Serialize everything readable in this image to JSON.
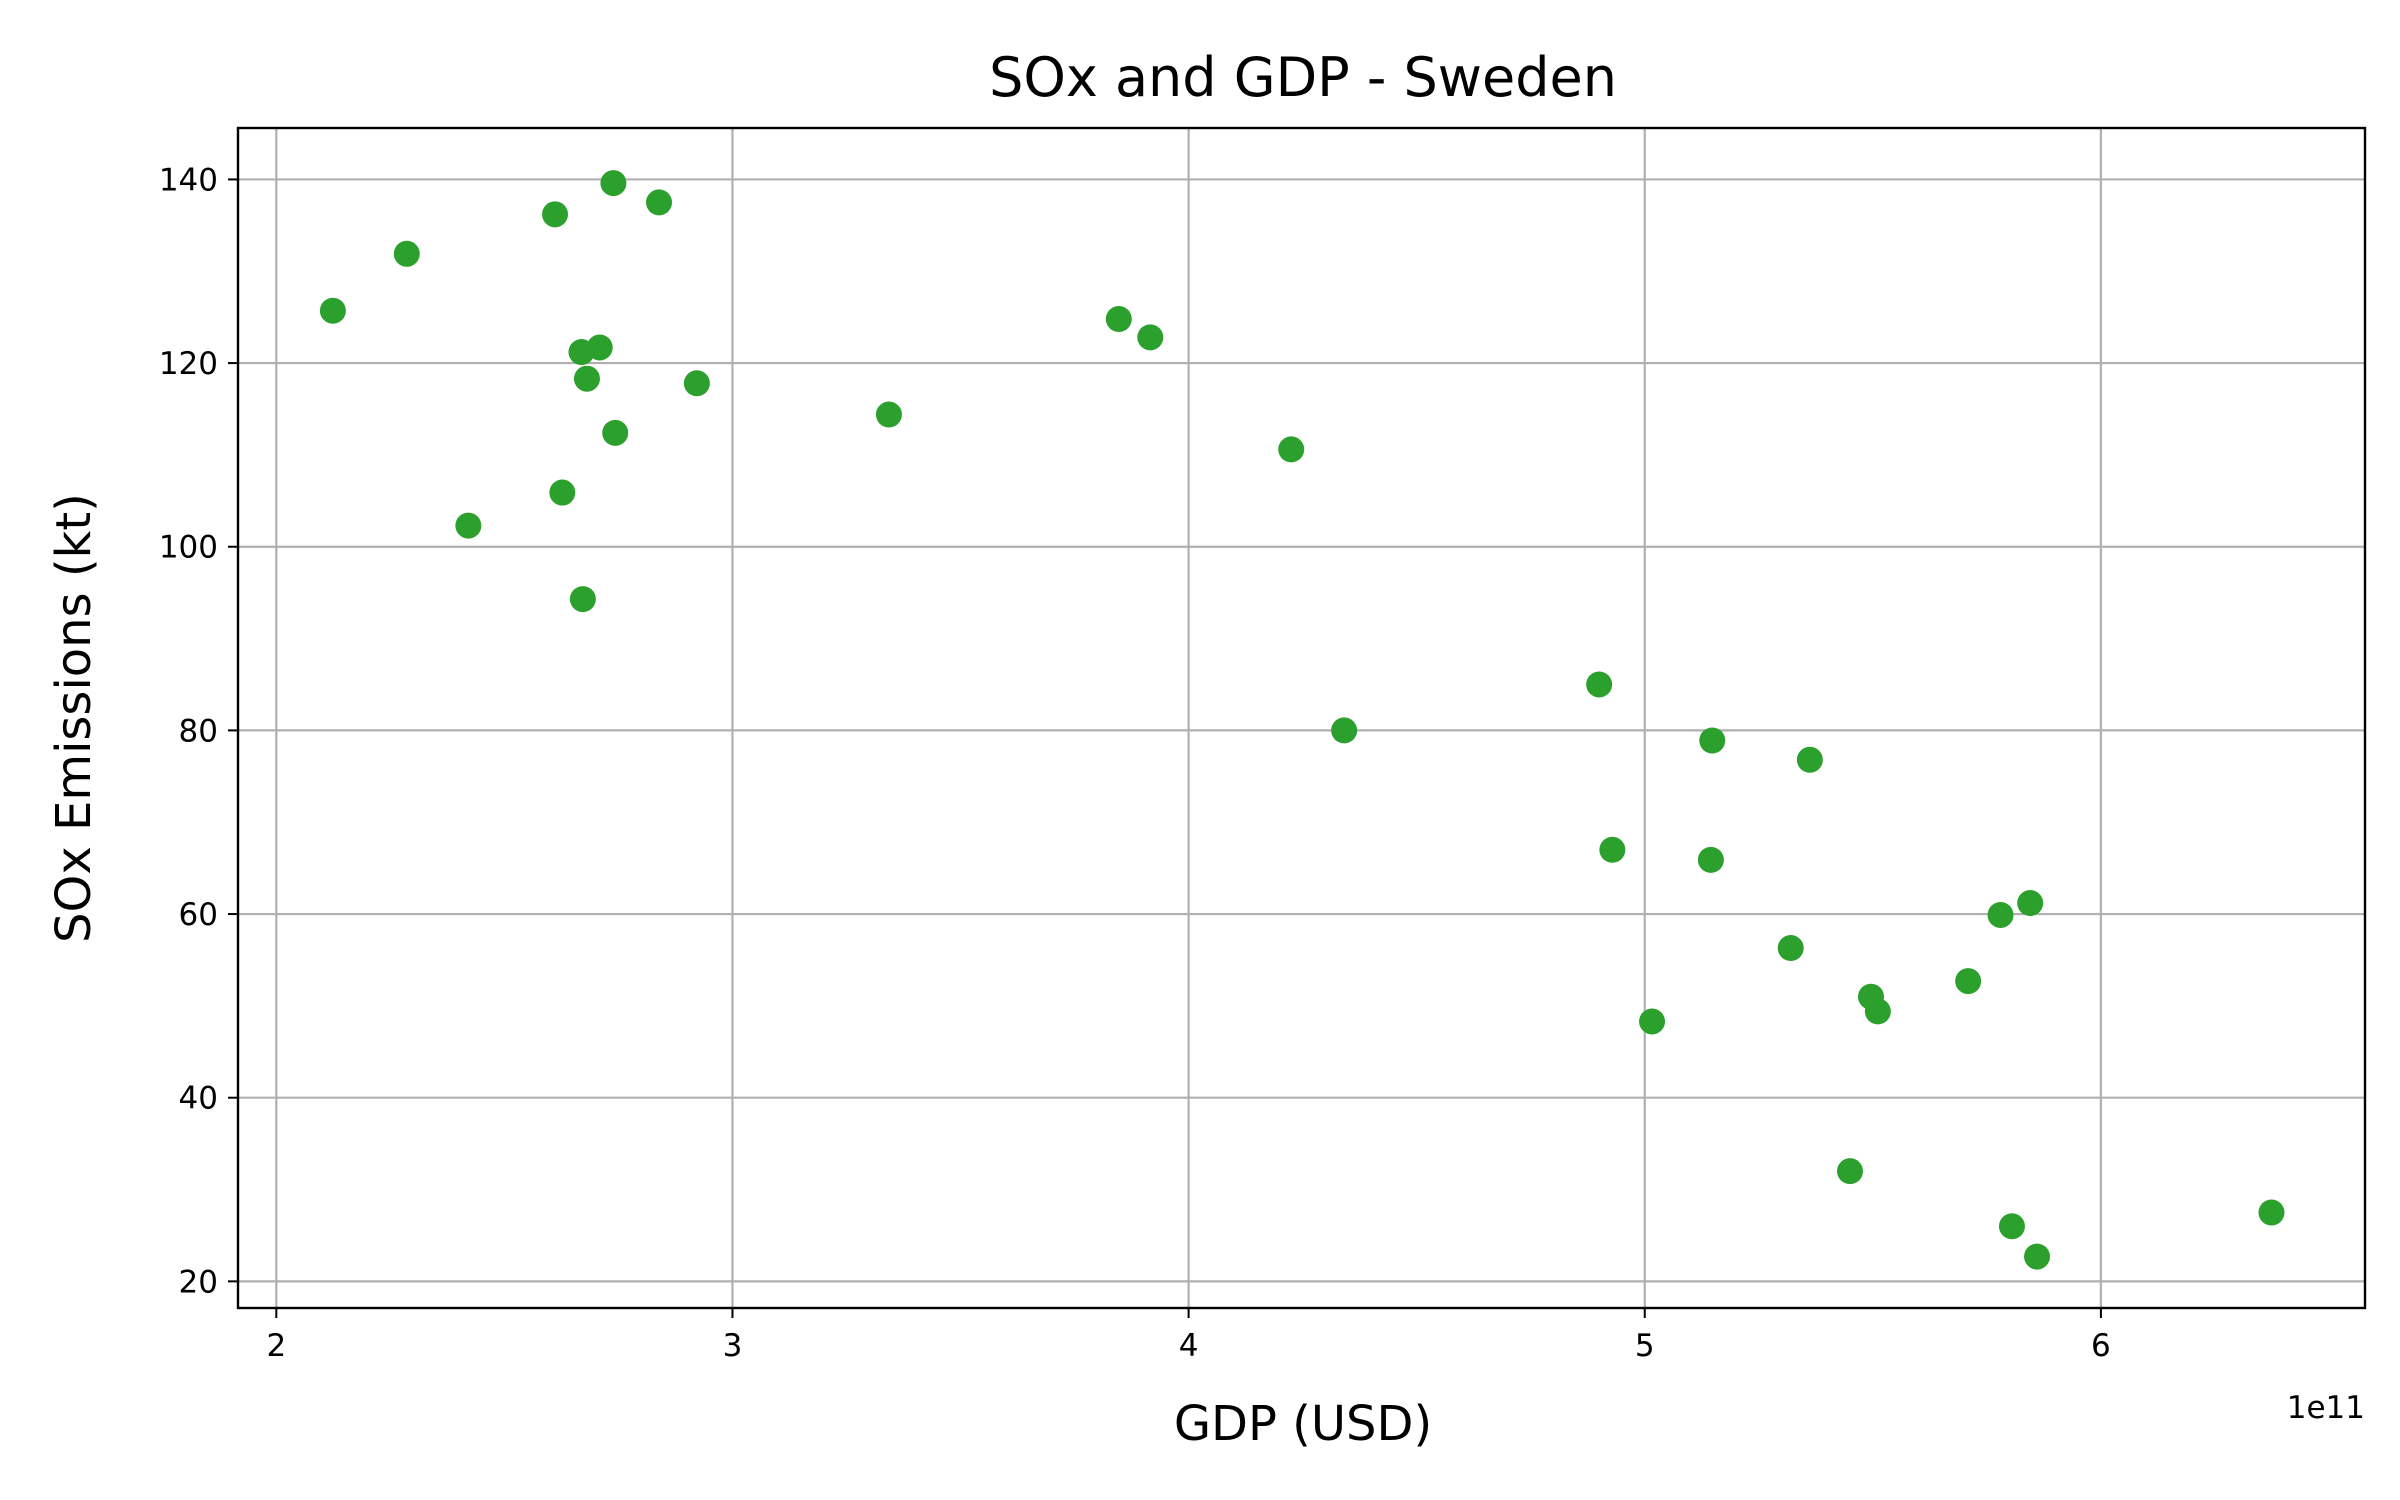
{
  "chart_data": {
    "type": "scatter",
    "title": "SOx and GDP - Sweden",
    "xlabel": "GDP (USD)",
    "ylabel": "SOx Emissions (kt)",
    "x_offset_label": "1e11",
    "x_scale": 100000000000,
    "xlim": [
      191600000000,
      657900000000
    ],
    "ylim": [
      17.1,
      145.6
    ],
    "x_ticks": [
      200000000000,
      300000000000,
      400000000000,
      500000000000,
      600000000000
    ],
    "x_tick_labels": [
      "2",
      "3",
      "4",
      "5",
      "6"
    ],
    "y_ticks": [
      20,
      40,
      60,
      80,
      100,
      120,
      140
    ],
    "y_tick_labels": [
      "20",
      "40",
      "60",
      "80",
      "100",
      "120",
      "140"
    ],
    "grid": true,
    "marker_color": "#2ca02c",
    "points": [
      {
        "x": 212400000000,
        "y": 125.7
      },
      {
        "x": 228600000000,
        "y": 131.9
      },
      {
        "x": 242100000000,
        "y": 102.3
      },
      {
        "x": 261100000000,
        "y": 136.2
      },
      {
        "x": 262700000000,
        "y": 105.9
      },
      {
        "x": 266900000000,
        "y": 121.2
      },
      {
        "x": 267200000000,
        "y": 94.3
      },
      {
        "x": 268100000000,
        "y": 118.3
      },
      {
        "x": 270900000000,
        "y": 121.7
      },
      {
        "x": 273900000000,
        "y": 139.6
      },
      {
        "x": 274300000000,
        "y": 112.4
      },
      {
        "x": 283900000000,
        "y": 137.5
      },
      {
        "x": 292200000000,
        "y": 117.8
      },
      {
        "x": 334300000000,
        "y": 114.4
      },
      {
        "x": 384700000000,
        "y": 124.8
      },
      {
        "x": 391600000000,
        "y": 122.8
      },
      {
        "x": 422500000000,
        "y": 110.6
      },
      {
        "x": 434100000000,
        "y": 80.0
      },
      {
        "x": 490000000000,
        "y": 85.0
      },
      {
        "x": 492900000000,
        "y": 67.0
      },
      {
        "x": 501600000000,
        "y": 48.3
      },
      {
        "x": 514500000000,
        "y": 65.9
      },
      {
        "x": 514800000000,
        "y": 78.9
      },
      {
        "x": 532000000000,
        "y": 56.3
      },
      {
        "x": 536200000000,
        "y": 76.8
      },
      {
        "x": 545000000000,
        "y": 32.0
      },
      {
        "x": 549600000000,
        "y": 51.0
      },
      {
        "x": 551100000000,
        "y": 49.4
      },
      {
        "x": 570900000000,
        "y": 52.7
      },
      {
        "x": 578000000000,
        "y": 59.9
      },
      {
        "x": 580500000000,
        "y": 26.0
      },
      {
        "x": 584500000000,
        "y": 61.2
      },
      {
        "x": 586000000000,
        "y": 22.7
      },
      {
        "x": 637400000000,
        "y": 27.5
      }
    ]
  }
}
